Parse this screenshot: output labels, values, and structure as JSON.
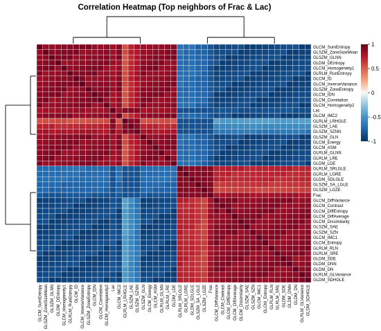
{
  "chart_data": {
    "type": "heatmap",
    "title": "Correlation Heatmap (Top neighbors of Frac & Lac)",
    "row_labels": [
      "GLCM_SumEntropy",
      "GLSZM_ZoneSizeMean",
      "GLSZM_GLNN",
      "GLDM_DEntropy",
      "GLCM_Homogeneity1",
      "GLRLM_RunEntropy",
      "GLCM_ID",
      "GLCM_InverseVariance",
      "GLSZM_ZoneEntropy",
      "GLCM_IDN",
      "GLCM_Correlation",
      "GLCM_Homogeneity2",
      "Lac",
      "GLCM_IMC2",
      "GLRLM_LRHGLE",
      "GLSZM_LAE",
      "GLSZM_SZNN",
      "GLSZM_GLN",
      "GLCM_Energy",
      "GLCM_ASM",
      "GLRLM_GLNN",
      "GLRLM_LRE",
      "GLDM_LDE",
      "GLRLM_SRLGLE",
      "GLRLM_LGRE",
      "GLDM_SDLGLE",
      "GLSZM_SA_LGLE",
      "GLSZM_LGZE",
      "Frac",
      "GLCM_DiffVariance",
      "GLCM_Contrast",
      "GLCM_DiffEntropy",
      "GLCM_DiffAverage",
      "GLCM_Dissimilarity",
      "GLSZM_SAE",
      "GLSZM_SZN",
      "GLCM_IMC1",
      "GLCM_Entropy",
      "GLRLM_RLN",
      "GLRLM_SRE",
      "GLDM_SDE",
      "GLDM_DNN",
      "GLDM_DN",
      "GLRLM_GLVariance",
      "GLDM_SDHGLE"
    ],
    "col_labels": [
      "GLCM_SumEntropy",
      "GLSZM_ZoneSizeMean",
      "GLSZM_GLNN",
      "GLDM_DEntropy",
      "GLCM_Homogeneity1",
      "GLRLM_RunEntropy",
      "GLCM_ID",
      "GLCM_InverseVariance",
      "GLSZM_ZoneEntropy",
      "GLCM_IDN",
      "GLCM_Correlation",
      "GLCM_Homogeneity2",
      "Lac",
      "GLCM_IMC2",
      "GLRLM_LRHGLE",
      "GLSZM_LAE",
      "GLSZM_SZNN",
      "GLSZM_GLN",
      "GLCM_Energy",
      "GLCM_ASM",
      "GLRLM_GLNN",
      "GLRLM_LRE",
      "GLDM_LDE",
      "GLRLM_SRLGLE",
      "GLRLM_LGRE",
      "GLDM_SDLGLE",
      "GLSZM_SA_LGLE",
      "GLSZM_LGZE",
      "Frac",
      "GLCM_DiffVariance",
      "GLCM_Contrast",
      "GLCM_DiffEntropy",
      "GLCM_DiffAverage",
      "GLCM_Dissimilarity",
      "GLSZM_SAE",
      "GLSZM_SZN",
      "GLCM_IMC1",
      "GLCM_Entropy",
      "GLRLM_RLN",
      "GLRLM_SRE",
      "GLDM_SDE",
      "GLDM_DNN",
      "GLDM_DN",
      "GLRLM_GLVariance",
      "GLDM_SDHGLE"
    ],
    "group_a_count": 23,
    "group_b_count": 22,
    "within_group_corr": 0.88,
    "between_group_corr": -0.9,
    "special_corr": [
      {
        "row": "GLRLM_LRHGLE",
        "with_group_a": 0.55,
        "with_group_b": -0.45
      },
      {
        "row": "GLSZM_LAE",
        "with_group_a": 0.7,
        "with_group_b": -0.55
      },
      {
        "row": "GLSZM_SZNN",
        "with_group_a": 0.78,
        "with_group_b": -0.65
      },
      {
        "row": "GLRLM_SRLGLE",
        "with_group_a": -0.7,
        "with_group_b": 0.72
      },
      {
        "row": "GLRLM_LGRE",
        "with_group_a": -0.72,
        "with_group_b": 0.7
      },
      {
        "row": "GLDM_SDLGLE",
        "with_group_a": -0.7,
        "with_group_b": 0.7
      },
      {
        "row": "GLSZM_SA_LGLE",
        "with_group_a": -0.75,
        "with_group_b": 0.65
      },
      {
        "row": "GLSZM_LGZE",
        "with_group_a": -0.75,
        "with_group_b": 0.6
      },
      {
        "row": "Lac",
        "with_group_a": 0.82,
        "with_group_b": -0.85
      },
      {
        "row": "Frac",
        "with_group_a": -0.82,
        "with_group_b": 0.8
      }
    ],
    "colorbar": {
      "min": -1,
      "max": 1,
      "ticks": [
        "1",
        "0.5",
        "0",
        "-0.5",
        "-1"
      ],
      "colors": [
        "#053061",
        "#2166ac",
        "#4393c3",
        "#92c5de",
        "#f7f7f7",
        "#f4a582",
        "#d6604d",
        "#b2182b",
        "#67001f"
      ]
    },
    "dendrogram": true,
    "grid": true
  }
}
